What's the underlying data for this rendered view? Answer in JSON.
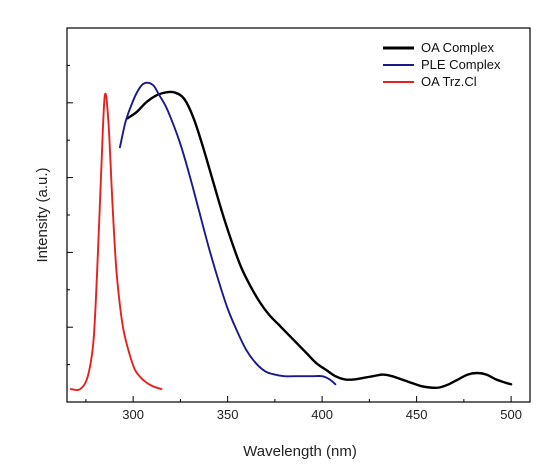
{
  "chart_data": {
    "type": "line",
    "xlabel": "Wavelength (nm)",
    "ylabel": "Intensity (a.u.)",
    "xlim": [
      265,
      510
    ],
    "ylim": [
      -0.04,
      1.12
    ],
    "x_ticks": [
      "300",
      "350",
      "400",
      "450",
      "500"
    ],
    "y_tick_labels_shown": false,
    "grid": false,
    "legend_position": "top-right",
    "series": [
      {
        "name": "OA Complex",
        "color": "#000000",
        "x": [
          297,
          302,
          307,
          312,
          317,
          322,
          327,
          332,
          337,
          342,
          347,
          352,
          357,
          362,
          367,
          372,
          377,
          382,
          387,
          392,
          397,
          402,
          407,
          412,
          417,
          422,
          427,
          432,
          437,
          442,
          447,
          452,
          457,
          462,
          467,
          472,
          477,
          482,
          487,
          492,
          497,
          500
        ],
        "y": [
          0.84,
          0.86,
          0.89,
          0.91,
          0.92,
          0.92,
          0.9,
          0.84,
          0.75,
          0.65,
          0.55,
          0.46,
          0.38,
          0.32,
          0.27,
          0.23,
          0.2,
          0.17,
          0.14,
          0.11,
          0.08,
          0.06,
          0.04,
          0.03,
          0.03,
          0.035,
          0.04,
          0.045,
          0.04,
          0.03,
          0.02,
          0.01,
          0.005,
          0.005,
          0.015,
          0.03,
          0.045,
          0.05,
          0.045,
          0.03,
          0.02,
          0.015
        ]
      },
      {
        "name": "PLE Complex",
        "color": "#1a1a8c",
        "x": [
          293,
          296,
          299,
          302,
          305,
          308,
          311,
          314,
          317,
          320,
          325,
          330,
          335,
          340,
          345,
          350,
          355,
          360,
          365,
          370,
          375,
          380,
          385,
          390,
          395,
          400,
          404,
          407
        ],
        "y": [
          0.75,
          0.83,
          0.88,
          0.92,
          0.945,
          0.95,
          0.94,
          0.91,
          0.88,
          0.84,
          0.76,
          0.66,
          0.55,
          0.44,
          0.34,
          0.25,
          0.18,
          0.12,
          0.08,
          0.055,
          0.045,
          0.04,
          0.04,
          0.04,
          0.04,
          0.04,
          0.03,
          0.015
        ]
      },
      {
        "name": "OA Trz.Cl",
        "color": "#e8201c",
        "x": [
          267,
          272,
          276,
          279,
          281,
          283,
          285,
          287,
          289,
          291,
          293,
          295,
          298,
          301,
          305,
          310,
          315
        ],
        "y": [
          0.0,
          0.0,
          0.04,
          0.15,
          0.37,
          0.66,
          0.91,
          0.82,
          0.58,
          0.38,
          0.26,
          0.18,
          0.11,
          0.06,
          0.03,
          0.01,
          0.0
        ]
      }
    ]
  }
}
